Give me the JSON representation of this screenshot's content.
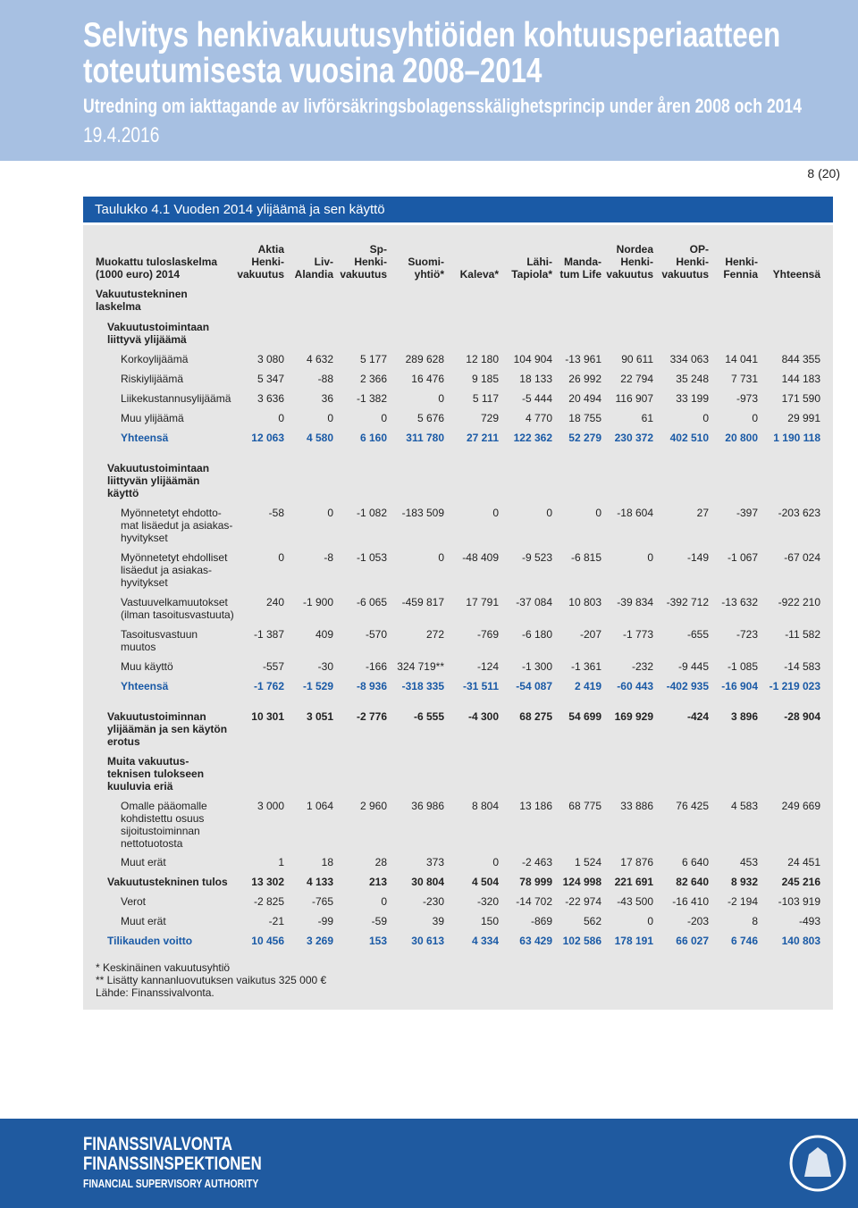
{
  "header": {
    "title": [
      "Selvitys henkivakuutusyhtiöiden kohtuusperiaatteen",
      "toteutumisesta vuosina 2008–2014"
    ],
    "subtitle": "Utredning om iakttagande av livförsäkringsbolagensskälighetsprincip under åren 2008 och 2014",
    "date": "19.4.2016",
    "page": "8 (20)"
  },
  "table": {
    "caption": "Taulukko 4.1 Vuoden 2014 ylijäämä ja sen käyttö",
    "row_header": [
      "Muokattu tuloslaskelma",
      "(1000 euro) 2014"
    ],
    "columns": [
      [
        "Aktia",
        "Henki-",
        "vakuutus"
      ],
      [
        "Liv-",
        "Alandia"
      ],
      [
        "Sp-",
        "Henki-",
        "vakuutus"
      ],
      [
        "Suomi-",
        "yhtiö*"
      ],
      [
        "Kaleva*"
      ],
      [
        "Lähi-",
        "Tapiola*"
      ],
      [
        "Manda-",
        "tum Life"
      ],
      [
        "Nordea",
        "Henki-",
        "vakuutus"
      ],
      [
        "OP-",
        "Henki-",
        "vakuutus"
      ],
      [
        "Henki-",
        "Fennia"
      ],
      [
        "Yhteensä"
      ]
    ],
    "rows": [
      {
        "label": [
          "Vakuutustekninen",
          "laskelma"
        ],
        "values": []
      },
      {
        "label": [
          "Vakuutustoimintaan",
          "liittyvä ylijäämä"
        ],
        "values": []
      },
      {
        "label": [
          "Korkoylijäämä"
        ],
        "values": [
          "3 080",
          "4 632",
          "5 177",
          "289 628",
          "12 180",
          "104 904",
          "-13 961",
          "90 611",
          "334 063",
          "14 041",
          "844 355"
        ]
      },
      {
        "label": [
          "Riskiylijäämä"
        ],
        "values": [
          "5 347",
          "-88",
          "2 366",
          "16 476",
          "9 185",
          "18 133",
          "26 992",
          "22 794",
          "35 248",
          "7 731",
          "144 183"
        ]
      },
      {
        "label": [
          "Liikekustannusylijäämä"
        ],
        "values": [
          "3 636",
          "36",
          "-1 382",
          "0",
          "5 117",
          "-5 444",
          "20 494",
          "116 907",
          "33 199",
          "-973",
          "171 590"
        ]
      },
      {
        "label": [
          "Muu ylijäämä"
        ],
        "values": [
          "0",
          "0",
          "0",
          "5 676",
          "729",
          "4 770",
          "18 755",
          "61",
          "0",
          "0",
          "29 991"
        ]
      },
      {
        "label": [
          "Yhteensä"
        ],
        "values": [
          "12 063",
          "4 580",
          "6 160",
          "311 780",
          "27 211",
          "122 362",
          "52 279",
          "230 372",
          "402 510",
          "20 800",
          "1 190 118"
        ]
      },
      {
        "label": [
          "Vakuutustoimintaan",
          "liittyvän ylijäämän",
          "käyttö"
        ],
        "values": []
      },
      {
        "label": [
          "Myönnetetyt ehdotto-",
          "mat lisäedut ja asiakas-",
          "hyvitykset"
        ],
        "values": [
          "-58",
          "0",
          "-1 082",
          "-183 509",
          "0",
          "0",
          "0",
          "-18 604",
          "27",
          "-397",
          "-203 623"
        ]
      },
      {
        "label": [
          "Myönnetetyt ehdolliset",
          "lisäedut ja asiakas-",
          "hyvitykset"
        ],
        "values": [
          "0",
          "-8",
          "-1 053",
          "0",
          "-48 409",
          "-9 523",
          "-6 815",
          "0",
          "-149",
          "-1 067",
          "-67 024"
        ]
      },
      {
        "label": [
          "Vastuuvelkamuutokset",
          "(ilman tasoitusvastuuta)"
        ],
        "values": [
          "240",
          "-1 900",
          "-6 065",
          "-459 817",
          "17 791",
          "-37 084",
          "10 803",
          "-39 834",
          "-392 712",
          "-13 632",
          "-922 210"
        ]
      },
      {
        "label": [
          "Tasoitusvastuun",
          "muutos"
        ],
        "values": [
          "-1 387",
          "409",
          "-570",
          "272",
          "-769",
          "-6 180",
          "-207",
          "-1 773",
          "-655",
          "-723",
          "-11 582"
        ]
      },
      {
        "label": [
          "Muu käyttö"
        ],
        "values": [
          "-557",
          "-30",
          "-166",
          "324 719**",
          "-124",
          "-1 300",
          "-1 361",
          "-232",
          "-9 445",
          "-1 085",
          "-14 583"
        ]
      },
      {
        "label": [
          "Yhteensä"
        ],
        "values": [
          "-1 762",
          "-1 529",
          "-8 936",
          "-318 335",
          "-31 511",
          "-54 087",
          "2 419",
          "-60 443",
          "-402 935",
          "-16 904",
          "-1 219 023"
        ]
      },
      {
        "label": [
          "Vakuutustoiminnan",
          "ylijäämän ja sen käytön",
          "erotus"
        ],
        "values": [
          "10 301",
          "3 051",
          "-2 776",
          "-6 555",
          "-4 300",
          "68 275",
          "54 699",
          "169 929",
          "-424",
          "3 896",
          "-28 904"
        ]
      },
      {
        "label": [
          "Muita vakuutus-",
          "teknisen tulokseen",
          "kuuluvia eriä"
        ],
        "values": []
      },
      {
        "label": [
          "Omalle pääomalle",
          "kohdistettu osuus",
          "sijoitustoiminnan",
          "nettotuotosta"
        ],
        "values": [
          "3 000",
          "1 064",
          "2 960",
          "36 986",
          "8 804",
          "13 186",
          "68 775",
          "33 886",
          "76 425",
          "4 583",
          "249 669"
        ]
      },
      {
        "label": [
          "Muut erät"
        ],
        "values": [
          "1",
          "18",
          "28",
          "373",
          "0",
          "-2 463",
          "1 524",
          "17 876",
          "6 640",
          "453",
          "24 451"
        ]
      },
      {
        "label": [
          "Vakuutustekninen tulos"
        ],
        "values": [
          "13 302",
          "4 133",
          "213",
          "30 804",
          "4 504",
          "78 999",
          "124 998",
          "221 691",
          "82 640",
          "8 932",
          "245 216"
        ]
      },
      {
        "label": [
          "Verot"
        ],
        "values": [
          "-2 825",
          "-765",
          "0",
          "-230",
          "-320",
          "-14 702",
          "-22 974",
          "-43 500",
          "-16 410",
          "-2 194",
          "-103 919"
        ]
      },
      {
        "label": [
          "Muut erät"
        ],
        "values": [
          "-21",
          "-99",
          "-59",
          "39",
          "150",
          "-869",
          "562",
          "0",
          "-203",
          "8",
          "-493"
        ]
      },
      {
        "label": [
          "Tilikauden voitto"
        ],
        "values": [
          "10 456",
          "3 269",
          "153",
          "30 613",
          "4 334",
          "63 429",
          "102 586",
          "178 191",
          "66 027",
          "6 746",
          "140 803"
        ]
      }
    ],
    "footnotes": [
      "* Keskinäinen vakuutusyhtiö",
      "** Lisätty kannanluovutuksen vaikutus 325 000 €",
      "Lähde: Finanssivalvonta."
    ]
  },
  "footer": {
    "logo": [
      "FINANSSIVALVONTA",
      "FINANSSINSPEKTIONEN",
      "FINANCIAL SUPERVISORY AUTHORITY"
    ]
  }
}
